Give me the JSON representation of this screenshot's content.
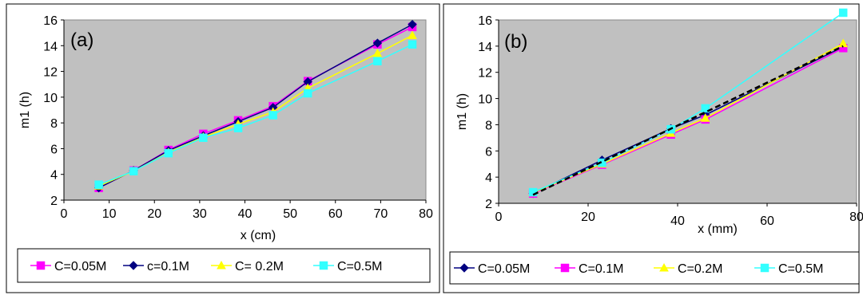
{
  "chart_data": [
    {
      "type": "line",
      "panel_label": "(a)",
      "xlabel": "x (cm)",
      "ylabel": "m1 (h)",
      "xlim": [
        0,
        80
      ],
      "ylim": [
        2,
        16
      ],
      "xticks": [
        0,
        10,
        20,
        30,
        40,
        50,
        60,
        70,
        80
      ],
      "yticks": [
        2,
        4,
        6,
        8,
        10,
        12,
        14,
        16
      ],
      "grid": false,
      "plot_background": "#c0c0c0",
      "legend_position": "bottom",
      "x": [
        7.7,
        15.4,
        23.1,
        30.8,
        38.5,
        46.2,
        53.9,
        69.3,
        77
      ],
      "series": [
        {
          "name": "C=0.05M",
          "color": "#ff00ff",
          "marker": "square",
          "values": [
            2.95,
            4.3,
            5.9,
            7.15,
            8.2,
            9.3,
            11.25,
            14.1,
            15.45
          ]
        },
        {
          "name": "c=0.1M",
          "color": "#000080",
          "marker": "diamond",
          "values": [
            2.95,
            4.3,
            5.85,
            7.0,
            8.1,
            9.2,
            11.2,
            14.2,
            15.65
          ]
        },
        {
          "name": "C= 0.2M",
          "color": "#ffff00",
          "marker": "triangle",
          "values": [
            3.1,
            4.25,
            5.7,
            6.9,
            7.9,
            8.85,
            10.7,
            13.4,
            14.8
          ]
        },
        {
          "name": "C=0.5M",
          "color": "#33ffff",
          "marker": "square",
          "values": [
            3.2,
            4.25,
            5.65,
            6.85,
            7.6,
            8.6,
            10.3,
            12.8,
            14.1
          ]
        }
      ]
    },
    {
      "type": "line",
      "panel_label": "(b)",
      "xlabel": "x (mm)",
      "ylabel": "m1 (h)",
      "xlim": [
        0,
        80
      ],
      "ylim": [
        2,
        16
      ],
      "xticks": [
        0,
        20,
        40,
        60,
        80
      ],
      "yticks": [
        2,
        4,
        6,
        8,
        10,
        12,
        14,
        16
      ],
      "grid": false,
      "plot_background": "#c0c0c0",
      "legend_position": "bottom",
      "x": [
        7.7,
        23.1,
        38.5,
        46.2,
        77
      ],
      "series": [
        {
          "name": "C=0.05M",
          "color": "#000080",
          "marker": "diamond",
          "values": [
            2.75,
            5.3,
            7.7,
            8.75,
            13.95
          ]
        },
        {
          "name": "C=0.1M",
          "color": "#ff00ff",
          "marker": "square",
          "values": [
            2.75,
            4.95,
            7.25,
            8.4,
            13.85
          ]
        },
        {
          "name": "C=0.2M",
          "color": "#ffff00",
          "marker": "triangle",
          "values": [
            2.8,
            5.0,
            7.35,
            8.5,
            14.2
          ]
        },
        {
          "name": "C=0.5M",
          "color": "#33ffff",
          "marker": "square",
          "values": [
            2.85,
            5.1,
            7.65,
            9.25,
            16.55
          ]
        }
      ],
      "fit_line": {
        "style": "dashed",
        "color": "#000000",
        "x": [
          7.7,
          77
        ],
        "y": [
          2.65,
          14.0
        ]
      }
    }
  ]
}
